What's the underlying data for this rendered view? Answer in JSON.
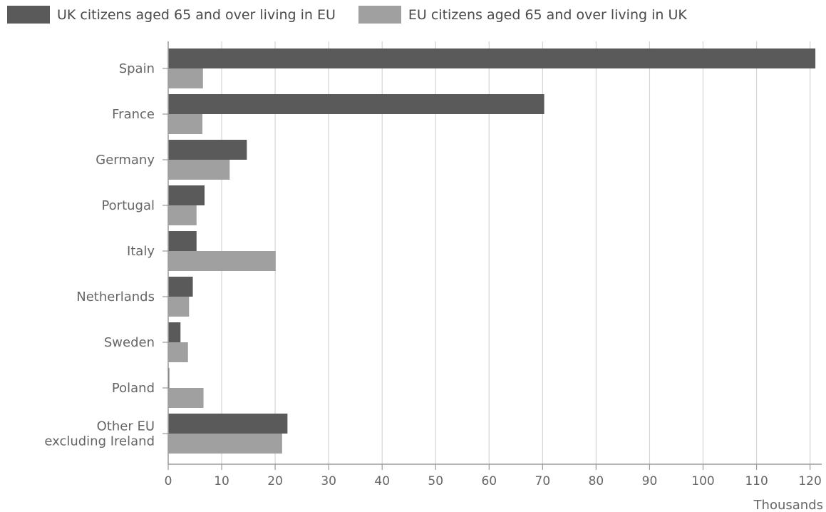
{
  "legend": {
    "uk_label": "UK citizens aged 65 and over living in EU",
    "eu_label": "EU citizens aged 65 and over living in UK"
  },
  "colors": {
    "uk": "#5a5a5a",
    "eu": "#a0a0a0",
    "grid": "#d4d4d4",
    "axis": "#9a9a9a"
  },
  "chart_data": {
    "type": "bar",
    "orientation": "horizontal",
    "categories": [
      "Spain",
      "France",
      "Germany",
      "Portugal",
      "Italy",
      "Netherlands",
      "Sweden",
      "Poland",
      "Other EU excluding Ireland"
    ],
    "category_lines": [
      [
        "Spain"
      ],
      [
        "France"
      ],
      [
        "Germany"
      ],
      [
        "Portugal"
      ],
      [
        "Italy"
      ],
      [
        "Netherlands"
      ],
      [
        "Sweden"
      ],
      [
        "Poland"
      ],
      [
        "Other EU",
        "excluding Ireland"
      ]
    ],
    "series": [
      {
        "name": "UK citizens aged 65 and over living in EU",
        "values": [
          121,
          70.3,
          14.7,
          6.8,
          5.3,
          4.6,
          2.3,
          0.2,
          22.3
        ]
      },
      {
        "name": "EU citizens aged 65 and over living in UK",
        "values": [
          6.5,
          6.4,
          11.5,
          5.3,
          20.1,
          3.9,
          3.7,
          6.6,
          21.3
        ]
      }
    ],
    "xlabel": "Thousands",
    "xlim": [
      0,
      122
    ],
    "xticks": [
      0,
      10,
      20,
      30,
      40,
      50,
      60,
      70,
      80,
      90,
      100,
      110,
      120
    ],
    "grid": true,
    "legend_position": "top-left"
  }
}
